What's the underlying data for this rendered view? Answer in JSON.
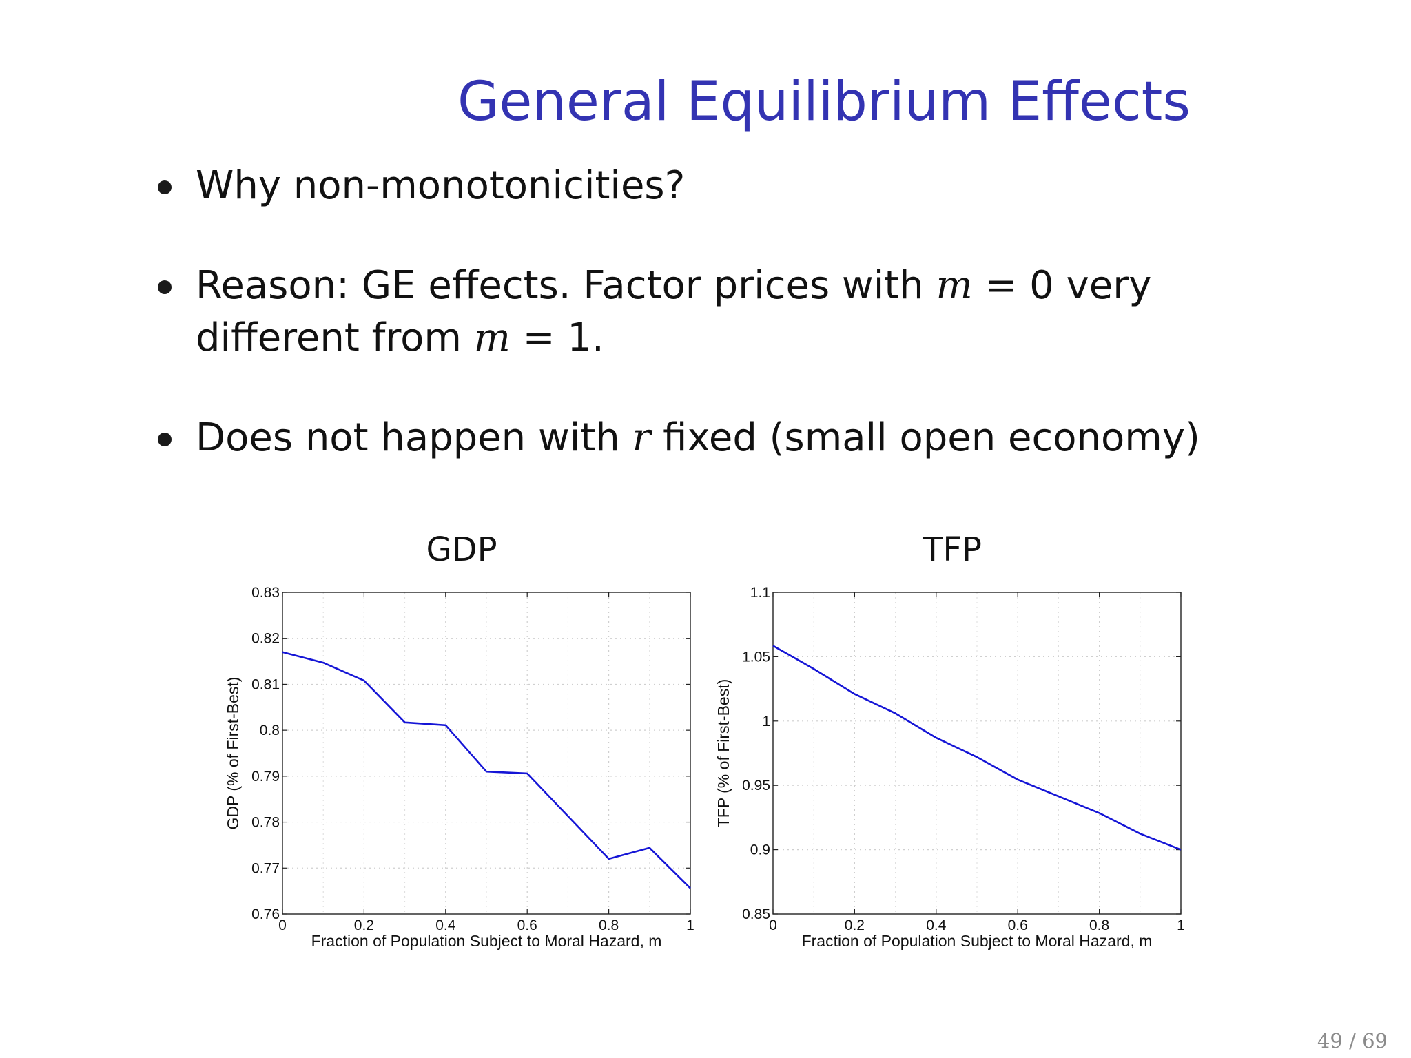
{
  "slide": {
    "title": "General Equilibrium Effects",
    "bullets": [
      {
        "parts": [
          {
            "t": "Why non-monotonicities?"
          }
        ]
      },
      {
        "parts": [
          {
            "t": "Reason:  GE effects.  Factor prices with "
          },
          {
            "t": "m",
            "math": true
          },
          {
            "t": " = 0 very different from "
          },
          {
            "t": "m",
            "math": true
          },
          {
            "t": " = 1."
          }
        ]
      },
      {
        "parts": [
          {
            "t": "Does not happen with "
          },
          {
            "t": "r",
            "math": true
          },
          {
            "t": " fixed (small open economy)"
          }
        ]
      }
    ],
    "page_number": "49 / 69"
  },
  "colors": {
    "title": "#3333b2",
    "line": "#1515d6"
  },
  "chart_data": [
    {
      "type": "line",
      "title": "GDP",
      "xlabel": "Fraction of Population Subject to Moral Hazard, m",
      "ylabel": "GDP (% of First-Best)",
      "xlim": [
        0,
        1
      ],
      "ylim": [
        0.76,
        0.83
      ],
      "xticks": [
        0,
        0.2,
        0.4,
        0.6,
        0.8,
        1
      ],
      "xtick_labels": [
        "0",
        "0.2",
        "0.4",
        "0.6",
        "0.8",
        "1"
      ],
      "yticks": [
        0.76,
        0.77,
        0.78,
        0.79,
        0.8,
        0.81,
        0.82,
        0.83
      ],
      "ytick_labels": [
        "0.76",
        "0.77",
        "0.78",
        "0.79",
        "0.8",
        "0.81",
        "0.82",
        "0.83"
      ],
      "grid": true,
      "x": [
        0,
        0.1,
        0.2,
        0.3,
        0.4,
        0.5,
        0.6,
        0.7,
        0.8,
        0.9,
        1.0
      ],
      "series": [
        {
          "values": [
            0.817,
            0.8147,
            0.8108,
            0.8017,
            0.8011,
            0.791,
            0.7906,
            0.7813,
            0.772,
            0.7744,
            0.7656
          ]
        }
      ]
    },
    {
      "type": "line",
      "title": "TFP",
      "xlabel": "Fraction of Population Subject to Moral Hazard, m",
      "ylabel": "TFP (% of First-Best)",
      "xlim": [
        0,
        1
      ],
      "ylim": [
        0.85,
        1.1
      ],
      "xticks": [
        0,
        0.2,
        0.4,
        0.6,
        0.8,
        1
      ],
      "xtick_labels": [
        "0",
        "0.2",
        "0.4",
        "0.6",
        "0.8",
        "1"
      ],
      "yticks": [
        0.85,
        0.9,
        0.95,
        1.0,
        1.05,
        1.1
      ],
      "ytick_labels": [
        "0.85",
        "0.9",
        "0.95",
        "1",
        "1.05",
        "1.1"
      ],
      "grid": true,
      "x": [
        0,
        0.1,
        0.2,
        0.3,
        0.4,
        0.5,
        0.6,
        0.7,
        0.8,
        0.9,
        1.0
      ],
      "series": [
        {
          "values": [
            1.0585,
            1.0405,
            1.021,
            1.006,
            0.987,
            0.972,
            0.9545,
            0.9415,
            0.9285,
            0.9125,
            0.9
          ]
        }
      ]
    }
  ]
}
